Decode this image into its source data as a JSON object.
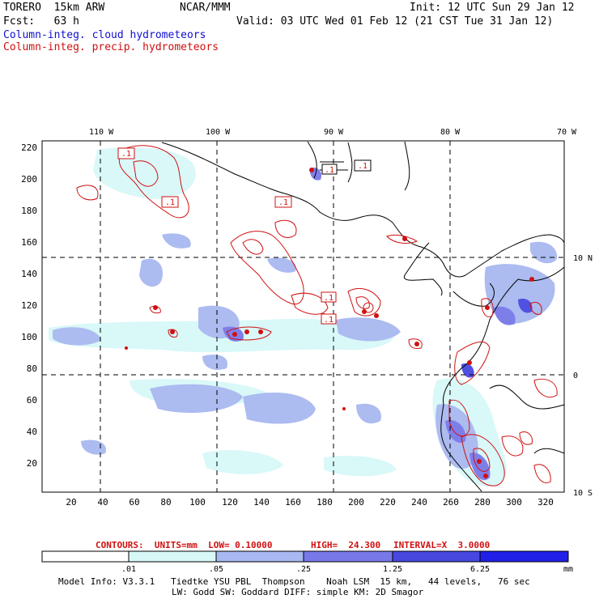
{
  "header": {
    "model": "TORERO  15km ARW",
    "org": "NCAR/MMM",
    "init": "Init: 12 UTC Sun 29 Jan 12",
    "fcst": "Fcst:   63 h",
    "valid": "Valid: 03 UTC Wed 01 Feb 12 (21 CST Tue 31 Jan 12)",
    "field1": "Column-integ. cloud hydrometeors",
    "field2": "Column-integ. precip. hydrometeors"
  },
  "map": {
    "lon_labels": [
      "110 W",
      "100 W",
      "90 W",
      "80 W",
      "70 W"
    ],
    "lat_labels": [
      "10 N",
      "0",
      "10 S"
    ],
    "y_ticks": [
      "220",
      "200",
      "180",
      "160",
      "140",
      "120",
      "100",
      "80",
      "60",
      "40",
      "20"
    ],
    "x_ticks": [
      "20",
      "40",
      "60",
      "80",
      "100",
      "120",
      "140",
      "160",
      "180",
      "200",
      "220",
      "240",
      "260",
      "280",
      "300",
      "320"
    ],
    "contour_labels": [
      ".1",
      ".1",
      ".1",
      ".1",
      ".1",
      ".1",
      ".1"
    ]
  },
  "contour_info": {
    "units": "CONTOURS:  UNITS=mm  LOW= 0.10000",
    "high": "HIGH=  24.300",
    "interval": "INTERVAL=X  3.0000"
  },
  "colorbar": {
    "labels": [
      ".01",
      ".05",
      ".25",
      "1.25",
      "6.25"
    ],
    "units": "mm",
    "colors": [
      "#ffffff",
      "#d8f8f8",
      "#a8b8f0",
      "#7878e8",
      "#4848e0",
      "#2020e8"
    ]
  },
  "footer": {
    "line1": "Model Info: V3.3.1   Tiedtke YSU PBL  Thompson    Noah LSM  15 km,   44 levels,   76 sec",
    "line2": "LW: Godd SW: Goddard DIFF: simple KM: 2D Smagor"
  }
}
